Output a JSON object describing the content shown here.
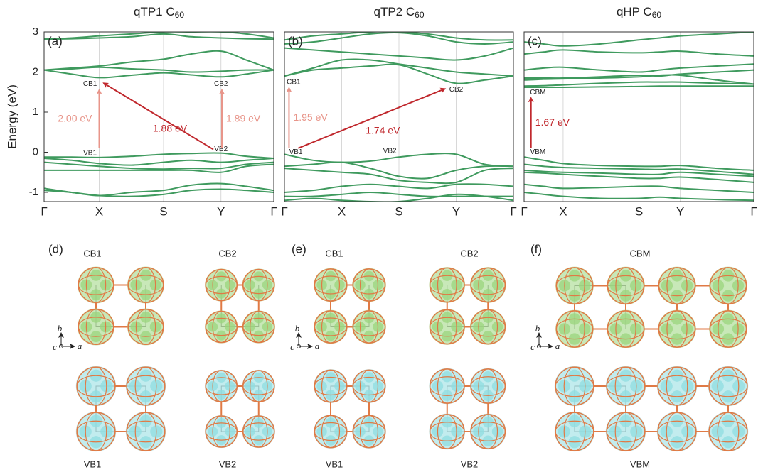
{
  "chart_data": [
    {
      "type": "line",
      "panel": "(a)",
      "title": "qTP1 C",
      "title_sub": "60",
      "ylabel": "Energy (eV)",
      "color": "#3f9a5e",
      "grid": true,
      "x": [
        0,
        0.12,
        0.24,
        0.38,
        0.52,
        0.64,
        0.77,
        0.88,
        1
      ],
      "xlim": [
        0,
        1
      ],
      "xticks": [
        {
          "value": 0,
          "label": "Γ"
        },
        {
          "value": 0.24,
          "label": "X"
        },
        {
          "value": 0.52,
          "label": "S"
        },
        {
          "value": 0.77,
          "label": "Y"
        },
        {
          "value": 1,
          "label": "Γ"
        }
      ],
      "ylim": [
        -1.23,
        3
      ],
      "yticks": [
        -1,
        0,
        1,
        2,
        3
      ],
      "series": [
        {
          "values": [
            2.05,
            1.95,
            1.86,
            1.92,
            1.98,
            1.93,
            1.88,
            1.95,
            2.05
          ]
        },
        {
          "values": [
            2.05,
            2.08,
            2.12,
            2.08,
            2.05,
            2.0,
            2.02,
            2.05,
            2.05
          ]
        },
        {
          "values": [
            2.05,
            2.1,
            2.15,
            2.25,
            2.32,
            2.45,
            2.52,
            2.3,
            2.05
          ]
        },
        {
          "values": [
            2.82,
            2.83,
            2.85,
            2.88,
            2.95,
            2.88,
            2.85,
            2.83,
            2.82
          ]
        },
        {
          "values": [
            2.82,
            2.85,
            2.9,
            2.95,
            3.0,
            3.0,
            3.0,
            2.95,
            2.85
          ]
        },
        {
          "values": [
            -0.12,
            -0.12,
            -0.13,
            -0.1,
            -0.05,
            -0.03,
            -0.02,
            -0.1,
            -0.15
          ]
        },
        {
          "values": [
            -0.15,
            -0.2,
            -0.28,
            -0.32,
            -0.25,
            -0.2,
            -0.25,
            -0.2,
            -0.15
          ]
        },
        {
          "values": [
            -0.25,
            -0.3,
            -0.35,
            -0.4,
            -0.42,
            -0.4,
            -0.4,
            -0.3,
            -0.25
          ]
        },
        {
          "values": [
            -0.45,
            -0.45,
            -0.45,
            -0.45,
            -0.45,
            -0.45,
            -0.5,
            -0.35,
            -0.3
          ]
        },
        {
          "values": [
            -0.9,
            -1.0,
            -1.08,
            -1.0,
            -0.95,
            -0.82,
            -0.78,
            -0.85,
            -0.95
          ]
        },
        {
          "values": [
            -0.95,
            -1.0,
            -1.08,
            -1.1,
            -1.05,
            -0.95,
            -0.92,
            -0.95,
            -1.0
          ]
        }
      ],
      "arrows": [
        {
          "label": "2.00 eV",
          "color": "#e8958a",
          "label_side": "left",
          "from": [
            0.24,
            0.1
          ],
          "to": [
            0.24,
            1.55
          ]
        },
        {
          "label": "1.88 eV",
          "color": "#c0282d",
          "label_side": "below",
          "from": [
            0.737,
            0.07
          ],
          "to": [
            0.26,
            1.72
          ]
        },
        {
          "label": "1.89 eV",
          "color": "#e8958a",
          "label_side": "right",
          "from": [
            0.774,
            0.1
          ],
          "to": [
            0.774,
            1.55
          ]
        }
      ],
      "point_labels": [
        {
          "text": "CB1",
          "x": 0.2,
          "y": 1.7
        },
        {
          "text": "VB1",
          "x": 0.2,
          "y": -0.02
        },
        {
          "text": "CB2",
          "x": 0.77,
          "y": 1.7
        },
        {
          "text": "VB2",
          "x": 0.77,
          "y": 0.07
        }
      ]
    },
    {
      "type": "line",
      "panel": "(b)",
      "title": "qTP2 C",
      "title_sub": "60",
      "color": "#3f9a5e",
      "grid": true,
      "x": [
        0,
        0.125,
        0.25,
        0.375,
        0.5,
        0.625,
        0.75,
        0.875,
        1
      ],
      "xlim": [
        0,
        1
      ],
      "xticks": [
        {
          "value": 0,
          "label": "Γ"
        },
        {
          "value": 0.25,
          "label": "X"
        },
        {
          "value": 0.5,
          "label": "S"
        },
        {
          "value": 0.75,
          "label": "Y"
        },
        {
          "value": 1,
          "label": "Γ"
        }
      ],
      "ylim": [
        -1.23,
        3
      ],
      "series": [
        {
          "values": [
            1.9,
            2.05,
            2.1,
            2.15,
            2.18,
            1.95,
            1.72,
            1.8,
            1.9
          ]
        },
        {
          "values": [
            1.9,
            2.1,
            2.3,
            2.3,
            2.2,
            2.1,
            2.0,
            1.95,
            1.9
          ]
        },
        {
          "values": [
            2.6,
            2.55,
            2.5,
            2.45,
            2.4,
            2.35,
            2.3,
            2.4,
            2.6
          ]
        },
        {
          "values": [
            2.7,
            2.75,
            2.85,
            2.95,
            2.98,
            2.9,
            2.75,
            2.7,
            2.75
          ]
        },
        {
          "values": [
            2.8,
            2.9,
            2.95,
            3.0,
            3.0,
            2.95,
            2.85,
            2.8,
            2.8
          ]
        },
        {
          "values": [
            -0.05,
            -0.2,
            -0.25,
            -0.22,
            -0.12,
            -0.05,
            -0.05,
            -0.3,
            -0.35
          ]
        },
        {
          "values": [
            -0.35,
            -0.3,
            -0.25,
            -0.4,
            -0.6,
            -0.65,
            -0.45,
            -0.35,
            -0.35
          ]
        },
        {
          "values": [
            -0.4,
            -0.45,
            -0.5,
            -0.55,
            -0.7,
            -0.75,
            -0.75,
            -0.45,
            -0.4
          ]
        },
        {
          "values": [
            -1.0,
            -0.95,
            -0.85,
            -0.8,
            -0.85,
            -0.9,
            -0.8,
            -0.8,
            -0.85
          ]
        },
        {
          "values": [
            -1.1,
            -1.1,
            -1.05,
            -1.0,
            -1.05,
            -1.1,
            -1.1,
            -1.1,
            -1.1
          ]
        },
        {
          "values": [
            -1.2,
            -1.15,
            -1.2,
            -1.23,
            -1.23,
            -1.15,
            -1.05,
            -1.1,
            -1.2
          ]
        }
      ],
      "arrows": [
        {
          "label": "1.95 eV",
          "color": "#e8958a",
          "label_side": "right",
          "from": [
            0.02,
            0.1
          ],
          "to": [
            0.02,
            1.6
          ]
        },
        {
          "label": "1.74 eV",
          "color": "#c0282d",
          "label_side": "below",
          "from": [
            0.06,
            0.1
          ],
          "to": [
            0.7,
            1.58
          ]
        }
      ],
      "point_labels": [
        {
          "text": "CB1",
          "x": 0.04,
          "y": 1.75
        },
        {
          "text": "VB1",
          "x": 0.05,
          "y": 0.0
        },
        {
          "text": "CB2",
          "x": 0.75,
          "y": 1.56
        },
        {
          "text": "VB2",
          "x": 0.46,
          "y": 0.03
        }
      ]
    },
    {
      "type": "line",
      "panel": "(c)",
      "title": "qHP C",
      "title_sub": "60",
      "color": "#3f9a5e",
      "grid": true,
      "x": [
        0,
        0.085,
        0.17,
        0.33,
        0.5,
        0.59,
        0.68,
        0.84,
        1
      ],
      "xlim": [
        0,
        1
      ],
      "xticks": [
        {
          "value": 0,
          "label": "Γ"
        },
        {
          "value": 0.17,
          "label": "X"
        },
        {
          "value": 0.5,
          "label": "S"
        },
        {
          "value": 0.68,
          "label": "Y"
        },
        {
          "value": 1,
          "label": "Γ"
        }
      ],
      "ylim": [
        -1.23,
        3
      ],
      "series": [
        {
          "values": [
            1.62,
            1.62,
            1.62,
            1.63,
            1.64,
            1.65,
            1.65,
            1.65,
            1.65
          ]
        },
        {
          "values": [
            1.65,
            1.66,
            1.68,
            1.72,
            1.75,
            1.75,
            1.75,
            1.72,
            1.7
          ]
        },
        {
          "values": [
            1.8,
            1.82,
            1.83,
            1.85,
            1.88,
            1.92,
            1.92,
            1.8,
            1.7
          ]
        },
        {
          "values": [
            1.85,
            1.85,
            1.85,
            1.88,
            1.92,
            1.9,
            1.95,
            2.0,
            2.05
          ]
        },
        {
          "values": [
            2.05,
            2.1,
            2.12,
            2.05,
            2.0,
            2.05,
            2.1,
            2.15,
            2.2
          ]
        },
        {
          "values": [
            2.45,
            2.5,
            2.55,
            2.5,
            2.48,
            2.5,
            2.52,
            2.45,
            2.4
          ]
        },
        {
          "values": [
            2.75,
            2.7,
            2.65,
            2.7,
            2.8,
            2.85,
            2.9,
            2.95,
            3.0
          ]
        },
        {
          "values": [
            -0.12,
            -0.2,
            -0.28,
            -0.33,
            -0.35,
            -0.35,
            -0.33,
            -0.4,
            -0.45
          ]
        },
        {
          "values": [
            -0.3,
            -0.35,
            -0.38,
            -0.4,
            -0.42,
            -0.43,
            -0.42,
            -0.48,
            -0.55
          ]
        },
        {
          "values": [
            -0.45,
            -0.48,
            -0.5,
            -0.52,
            -0.55,
            -0.55,
            -0.5,
            -0.55,
            -0.6
          ]
        },
        {
          "values": [
            -0.5,
            -0.52,
            -0.55,
            -0.6,
            -0.65,
            -0.65,
            -0.62,
            -0.68,
            -0.75
          ]
        },
        {
          "values": [
            -0.8,
            -0.85,
            -0.9,
            -0.88,
            -0.85,
            -0.85,
            -0.9,
            -0.95,
            -1.0
          ]
        },
        {
          "values": [
            -1.0,
            -1.05,
            -1.1,
            -1.15,
            -1.15,
            -1.12,
            -1.15,
            -1.18,
            -1.2
          ]
        }
      ],
      "arrows": [
        {
          "label": "1.67 eV",
          "color": "#c0282d",
          "label_side": "right",
          "from": [
            0.03,
            0.1
          ],
          "to": [
            0.03,
            1.35
          ]
        }
      ],
      "point_labels": [
        {
          "text": "CBM",
          "x": 0.06,
          "y": 1.49
        },
        {
          "text": "VBM",
          "x": 0.06,
          "y": 0.0
        }
      ]
    }
  ],
  "structures": [
    {
      "panel": "(d)",
      "axes": [
        "b",
        "c",
        "a"
      ],
      "images": [
        {
          "label": "CB1",
          "color": "#9bd67d"
        },
        {
          "label": "CB2",
          "color": "#9bd67d"
        },
        {
          "label": "VB1",
          "color": "#8fdde0"
        },
        {
          "label": "VB2",
          "color": "#8fdde0"
        }
      ]
    },
    {
      "panel": "(e)",
      "axes": [
        "b",
        "c",
        "a"
      ],
      "images": [
        {
          "label": "CB1",
          "color": "#9bd67d"
        },
        {
          "label": "CB2",
          "color": "#9bd67d"
        },
        {
          "label": "VB1",
          "color": "#8fdde0"
        },
        {
          "label": "VB2",
          "color": "#8fdde0"
        }
      ]
    },
    {
      "panel": "(f)",
      "axes": [
        "b",
        "c",
        "a"
      ],
      "images": [
        {
          "label": "CBM",
          "color": "#9bd67d"
        },
        {
          "label": "VBM",
          "color": "#8fdde0"
        }
      ]
    }
  ]
}
